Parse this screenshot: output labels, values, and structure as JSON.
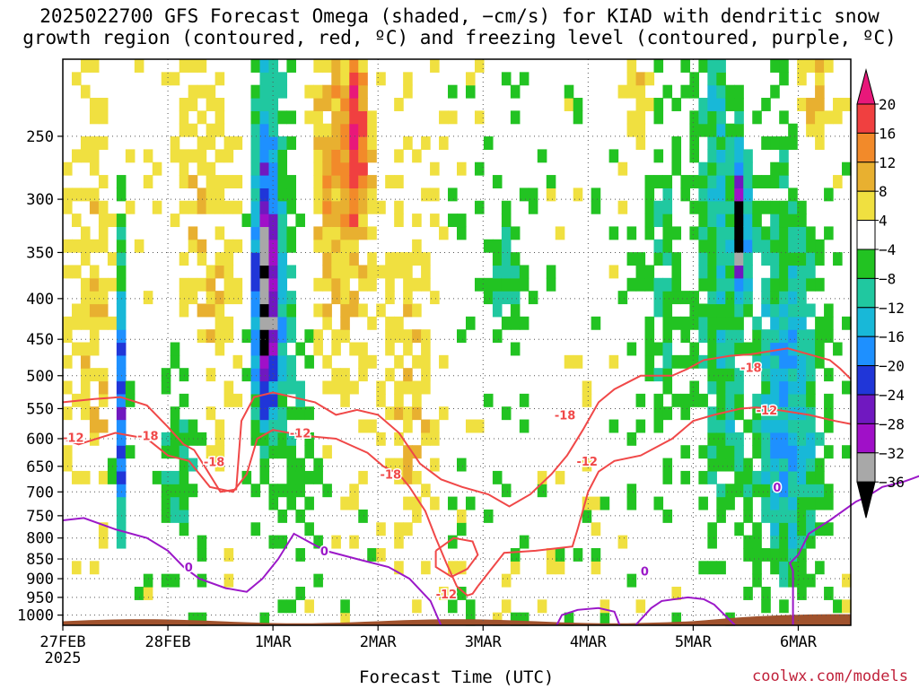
{
  "title": {
    "line1": "2025022700 GFS Forecast Omega (shaded, −cm/s) for KIAD with dendritic snow",
    "line2": "growth region (contoured, red, ºC) and freezing level (contoured, purple, ºC)"
  },
  "credit": "coolwx.com/models",
  "chart_data": {
    "type": "heatmap",
    "title": "2025022700 GFS Forecast Omega (shaded, −cm/s) for KIAD with dendritic snow growth region (contoured, red, ºC) and freezing level (contoured, purple, ºC)",
    "xlabel": "Forecast Time (UTC)",
    "ylabel": "",
    "x_ticks": [
      "27FEB",
      "28FEB",
      "1MAR",
      "2MAR",
      "3MAR",
      "4MAR",
      "5MAR",
      "6MAR"
    ],
    "x_year_label": "2025",
    "xlim_days": [
      0,
      7.5
    ],
    "y_ticks": [
      250,
      300,
      350,
      400,
      450,
      500,
      550,
      600,
      650,
      700,
      750,
      800,
      850,
      900,
      950,
      1000
    ],
    "ylim": [
      1030,
      200
    ],
    "y_scale": "log-pressure",
    "grid": true,
    "colorbar": {
      "ticks": [
        "20",
        "16",
        "12",
        "8",
        "4",
        "−4",
        "−8",
        "−12",
        "−16",
        "−20",
        "−24",
        "−28",
        "−32",
        "−36"
      ],
      "bins": [
        {
          "range": "> 20",
          "color": "#e8187a"
        },
        {
          "range": "16 to 20",
          "color": "#f04040"
        },
        {
          "range": "12 to 16",
          "color": "#f28a2a"
        },
        {
          "range": "8 to 12",
          "color": "#e8b030"
        },
        {
          "range": "4 to 8",
          "color": "#f0e040"
        },
        {
          "range": "-4 to 4",
          "color": "#ffffff"
        },
        {
          "range": "-8 to -4",
          "color": "#22c322"
        },
        {
          "range": "-12 to -8",
          "color": "#20c8a0"
        },
        {
          "range": "-16 to -12",
          "color": "#18b8d8"
        },
        {
          "range": "-20 to -16",
          "color": "#1e90ff"
        },
        {
          "range": "-24 to -20",
          "color": "#2036d8"
        },
        {
          "range": "-28 to -24",
          "color": "#7018c0"
        },
        {
          "range": "-32 to -28",
          "color": "#a010c8"
        },
        {
          "range": "-36 to -32",
          "color": "#a8a8a8"
        },
        {
          "range": "< -36",
          "color": "#000000"
        }
      ]
    },
    "contour_labels": {
      "red": [
        "-12",
        "-18",
        "-18",
        "-12",
        "-18",
        "-18",
        "-12",
        "-12",
        "-18",
        "-12"
      ],
      "purple": [
        "0",
        "0",
        "0",
        "0"
      ]
    },
    "red_contour_color": "#f04848",
    "purple_contour_color": "#9b18c8",
    "ground_color": "#a0522d",
    "omega_features": [
      {
        "day_center": 1.93,
        "p_center": 400,
        "p_half": 160,
        "day_half": 0.12,
        "peak": -36
      },
      {
        "day_center": 6.45,
        "p_center": 330,
        "p_half": 60,
        "day_half": 0.06,
        "peak": -36
      },
      {
        "day_center": 0.55,
        "p_center": 560,
        "p_half": 220,
        "day_half": 0.06,
        "peak": -24
      },
      {
        "day_center": 2.15,
        "p_center": 400,
        "p_half": 330,
        "day_half": 0.25,
        "peak": -8
      },
      {
        "day_center": 6.9,
        "p_center": 580,
        "p_half": 300,
        "day_half": 0.3,
        "peak": -16
      },
      {
        "day_center": 6.3,
        "p_center": 520,
        "p_half": 300,
        "day_half": 0.25,
        "peak": -8
      },
      {
        "day_center": 2.55,
        "p_center": 300,
        "p_half": 170,
        "day_half": 0.35,
        "peak": 10
      },
      {
        "day_center": 2.8,
        "p_center": 250,
        "p_half": 70,
        "day_half": 0.1,
        "peak": 16
      },
      {
        "day_center": 1.4,
        "p_center": 350,
        "p_half": 200,
        "day_half": 0.35,
        "peak": 6
      },
      {
        "day_center": 0.3,
        "p_center": 450,
        "p_half": 230,
        "day_half": 0.3,
        "peak": 6
      },
      {
        "day_center": 3.3,
        "p_center": 550,
        "p_half": 250,
        "day_half": 0.25,
        "peak": 6
      },
      {
        "day_center": 4.2,
        "p_center": 380,
        "p_half": 80,
        "day_half": 0.2,
        "peak": -6
      },
      {
        "day_center": 5.5,
        "p_center": 230,
        "p_half": 60,
        "day_half": 0.15,
        "peak": 6
      },
      {
        "day_center": 7.15,
        "p_center": 230,
        "p_half": 60,
        "day_half": 0.15,
        "peak": 10
      },
      {
        "day_center": 6.2,
        "p_center": 250,
        "p_half": 170,
        "day_half": 0.15,
        "peak": -8
      },
      {
        "day_center": 5.7,
        "p_center": 380,
        "p_half": 170,
        "day_half": 0.2,
        "peak": -8
      },
      {
        "day_center": 6.5,
        "p_center": 520,
        "p_half": 60,
        "day_half": 0.05,
        "peak": 12
      },
      {
        "day_center": 1.1,
        "p_center": 650,
        "p_half": 200,
        "day_half": 0.2,
        "peak": -8
      }
    ]
  }
}
